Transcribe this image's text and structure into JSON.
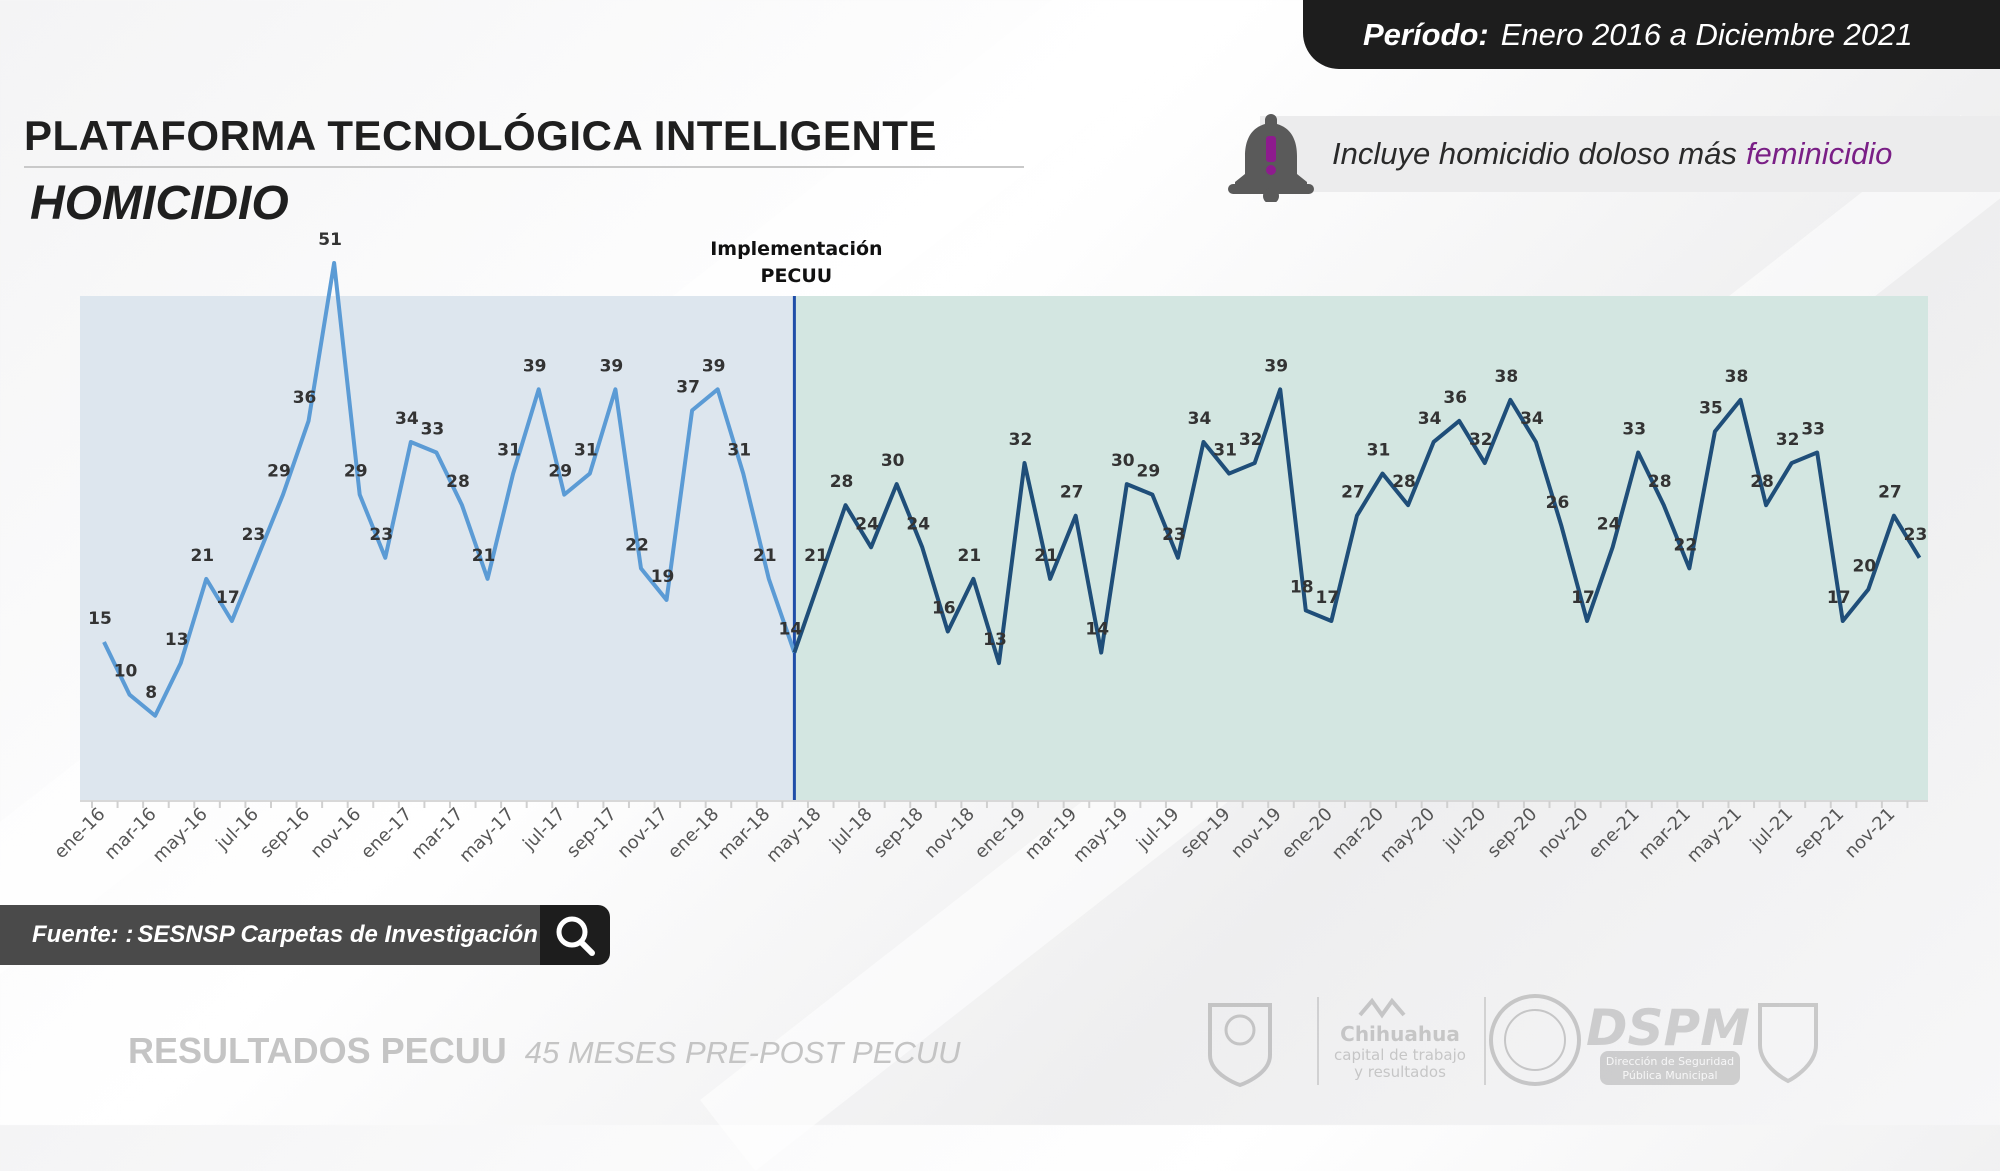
{
  "period": {
    "label": "Período:",
    "value": "Enero 2016 a Diciembre 2021"
  },
  "title": "PLATAFORMA TECNOLÓGICA INTELIGENTE",
  "subtitle": "HOMICIDIO",
  "note": {
    "text": "Incluye homicidio doloso más",
    "highlight": "feminicidio",
    "highlight_color": "#7a1f86",
    "icon": "alert-bell-icon"
  },
  "source": {
    "label": "Fuente: :",
    "text": "SESNSP Carpetas de Investigación",
    "icon": "search-icon"
  },
  "footer": {
    "main": "RESULTADOS PECUU",
    "sub": "45 MESES PRE-POST PECUU"
  },
  "logos": {
    "city_text": [
      "Chihuahua",
      "capital de trabajo",
      "y resultados"
    ],
    "dspm": "DSPM",
    "dspm_sub": [
      "Dirección de Seguridad",
      "Pública Municipal"
    ]
  },
  "chart_data": {
    "type": "line",
    "title": "",
    "annotation": {
      "lines": [
        "Implementación",
        "PECUU"
      ],
      "at_index": 27
    },
    "colors": {
      "pre": "#5b9bd5",
      "post": "#1f4e79",
      "marker": "#1f4ea8",
      "pre_bg": "#dde6ee",
      "post_bg": "#d3e6e1"
    },
    "tick_labels": [
      "ene-16",
      "mar-16",
      "may-16",
      "jul-16",
      "sep-16",
      "nov-16",
      "ene-17",
      "mar-17",
      "may-17",
      "jul-17",
      "sep-17",
      "nov-17",
      "ene-18",
      "mar-18",
      "may-18",
      "jul-18",
      "sep-18",
      "nov-18",
      "ene-19",
      "mar-19",
      "may-19",
      "jul-19",
      "sep-19",
      "nov-19",
      "ene-20",
      "mar-20",
      "may-20",
      "jul-20",
      "sep-20",
      "nov-20",
      "ene-21",
      "mar-21",
      "may-21",
      "jul-21",
      "sep-21",
      "nov-21"
    ],
    "series": [
      {
        "name": "",
        "segment": "pre",
        "values": [
          15,
          10,
          8,
          13,
          21,
          17,
          23,
          29,
          36,
          51,
          29,
          23,
          34,
          33,
          28,
          21,
          31,
          39,
          29,
          31,
          39,
          22,
          19,
          37,
          39,
          31,
          21,
          14
        ]
      },
      {
        "name": "",
        "segment": "post",
        "values": [
          14,
          21,
          28,
          24,
          30,
          24,
          16,
          21,
          13,
          32,
          21,
          27,
          14,
          30,
          29,
          23,
          34,
          31,
          32,
          39,
          18,
          17,
          27,
          31,
          28,
          34,
          36,
          32,
          38,
          34,
          26,
          17,
          24,
          33,
          28,
          22,
          35,
          38,
          28,
          32,
          33,
          17,
          20,
          27,
          23
        ]
      }
    ],
    "ylim": [
      0,
      60
    ],
    "grid": false,
    "legend": "none"
  }
}
